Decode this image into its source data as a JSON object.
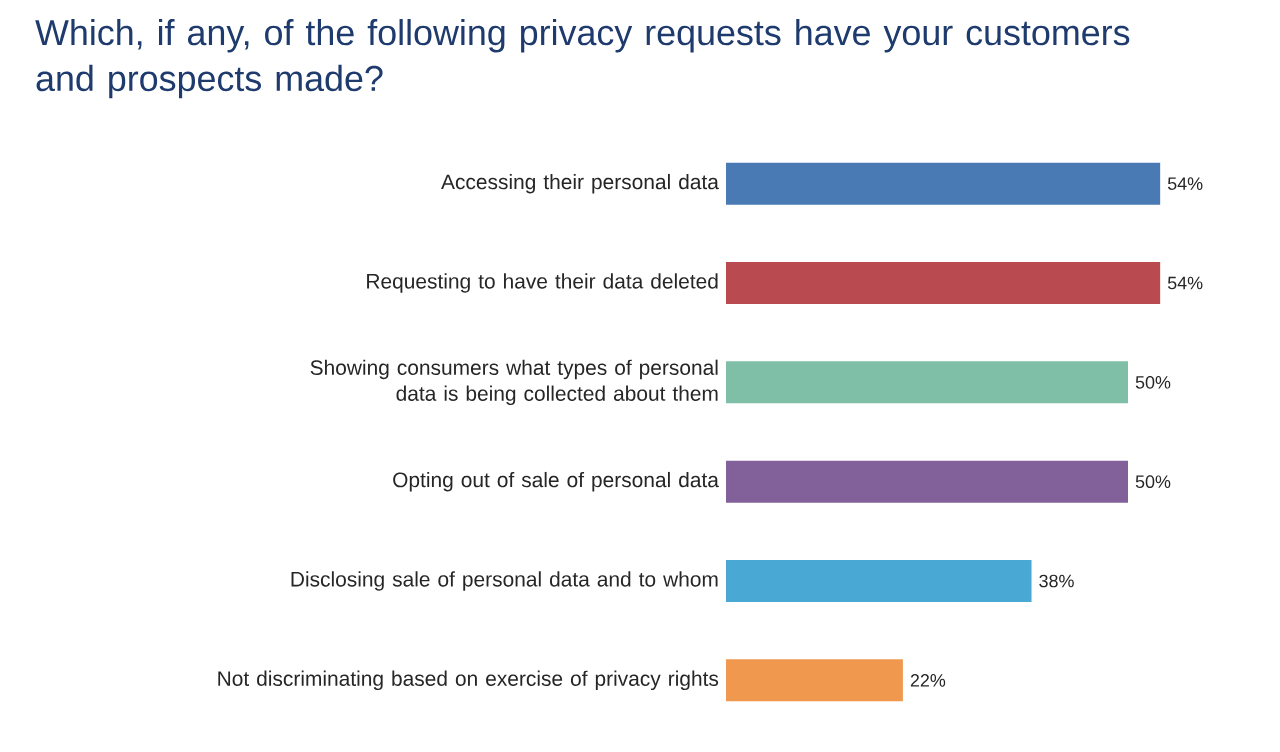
{
  "chart_data": {
    "type": "bar",
    "orientation": "horizontal",
    "title": "Which, if any, of the following privacy requests have your customers and prospects made?",
    "categories": [
      "Accessing their personal data",
      "Requesting to have their data deleted",
      "Showing consumers what types of personal data is being collected about them",
      "Opting out of sale of personal data",
      "Disclosing sale of personal data and to whom",
      "Not discriminating based on exercise of privacy rights"
    ],
    "values": [
      54,
      54,
      50,
      50,
      38,
      22
    ],
    "colors": [
      "#4a7ab4",
      "#b94a4f",
      "#7fbfa8",
      "#82619a",
      "#4aa8d4",
      "#f0984e"
    ],
    "value_labels": [
      "54%",
      "54%",
      "50%",
      "50%",
      "38%",
      "22%"
    ]
  }
}
